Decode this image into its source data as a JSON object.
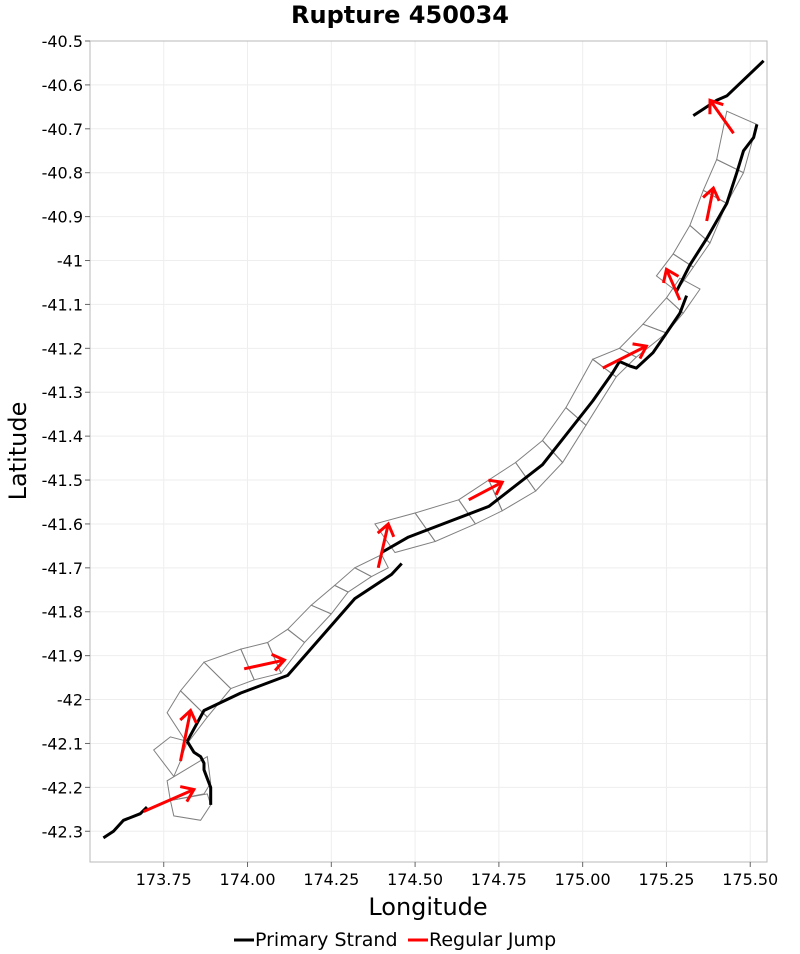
{
  "chart_data": {
    "type": "line",
    "title": "Rupture 450034",
    "xlabel": "Longitude",
    "ylabel": "Latitude",
    "xlim": [
      173.53,
      175.55
    ],
    "ylim": [
      -42.37,
      -40.5
    ],
    "xticks": [
      "173.75",
      "174.00",
      "174.25",
      "174.50",
      "174.75",
      "175.00",
      "175.25",
      "175.50"
    ],
    "yticks": [
      "-40.5",
      "-40.6",
      "-40.7",
      "-40.8",
      "-40.9",
      "-41",
      "-41.1",
      "-41.2",
      "-41.3",
      "-41.4",
      "-41.5",
      "-41.6",
      "-41.7",
      "-41.8",
      "-41.9",
      "-42",
      "-42.1",
      "-42.2",
      "-42.3"
    ],
    "grid": true,
    "legend_position": "bottom",
    "colors": {
      "primary_strand": "#000000",
      "regular_jump": "#ff0000",
      "subsection_outline": "#808080",
      "grid": "#eeeeee",
      "frame": "#b8b8b8"
    },
    "series": [
      {
        "name": "Primary Strand",
        "segments": [
          {
            "x": [
              173.57,
              173.6,
              173.63,
              173.68,
              173.7
            ],
            "y": [
              -42.315,
              -42.3,
              -42.275,
              -42.26,
              -42.245
            ]
          },
          {
            "x": [
              173.89,
              173.89,
              173.88,
              173.87,
              173.87,
              173.86,
              173.84,
              173.82
            ],
            "y": [
              -42.24,
              -42.2,
              -42.18,
              -42.16,
              -42.145,
              -42.13,
              -42.12,
              -42.095
            ]
          },
          {
            "x": [
              173.82,
              173.87,
              173.98,
              174.12,
              174.32,
              174.43,
              174.46
            ],
            "y": [
              -42.095,
              -42.025,
              -41.985,
              -41.945,
              -41.77,
              -41.715,
              -41.69
            ]
          },
          {
            "x": [
              174.4,
              174.48,
              174.72,
              174.88,
              175.03,
              175.09,
              175.11,
              175.14,
              175.16,
              175.21,
              175.25,
              175.29,
              175.31
            ],
            "y": [
              -41.665,
              -41.63,
              -41.56,
              -41.465,
              -41.32,
              -41.255,
              -41.23,
              -41.24,
              -41.245,
              -41.21,
              -41.165,
              -41.12,
              -41.08
            ]
          },
          {
            "x": [
              175.28,
              175.32,
              175.37,
              175.43,
              175.46,
              175.48,
              175.5,
              175.51,
              175.52
            ],
            "y": [
              -41.07,
              -41.01,
              -40.95,
              -40.87,
              -40.8,
              -40.75,
              -40.73,
              -40.72,
              -40.69
            ]
          },
          {
            "x": [
              175.33,
              175.36,
              175.4,
              175.43,
              175.54
            ],
            "y": [
              -40.67,
              -40.655,
              -40.635,
              -40.625,
              -40.545
            ]
          }
        ]
      },
      {
        "name": "Regular Jump",
        "arrows": [
          {
            "from": [
              173.69,
              -42.255
            ],
            "to": [
              173.84,
              -42.205
            ]
          },
          {
            "from": [
              173.8,
              -42.14
            ],
            "to": [
              173.83,
              -42.025
            ]
          },
          {
            "from": [
              173.99,
              -41.93
            ],
            "to": [
              174.11,
              -41.91
            ]
          },
          {
            "from": [
              174.39,
              -41.7
            ],
            "to": [
              174.42,
              -41.6
            ]
          },
          {
            "from": [
              174.66,
              -41.545
            ],
            "to": [
              174.76,
              -41.505
            ]
          },
          {
            "from": [
              175.06,
              -41.245
            ],
            "to": [
              175.19,
              -41.195
            ]
          },
          {
            "from": [
              175.29,
              -41.09
            ],
            "to": [
              175.25,
              -41.02
            ]
          },
          {
            "from": [
              175.37,
              -40.91
            ],
            "to": [
              175.39,
              -40.835
            ]
          },
          {
            "from": [
              175.45,
              -40.71
            ],
            "to": [
              175.38,
              -40.635
            ]
          }
        ]
      }
    ],
    "subsection_outlines": [
      [
        [
          173.77,
          -42.23
        ],
        [
          173.76,
          -42.185
        ],
        [
          173.88,
          -42.13
        ],
        [
          173.89,
          -42.19
        ],
        [
          173.87,
          -42.215
        ]
      ],
      [
        [
          173.77,
          -42.23
        ],
        [
          173.78,
          -42.265
        ],
        [
          173.86,
          -42.275
        ],
        [
          173.89,
          -42.24
        ],
        [
          173.88,
          -42.215
        ]
      ],
      [
        [
          173.72,
          -42.115
        ],
        [
          173.75,
          -42.145
        ],
        [
          173.78,
          -42.175
        ],
        [
          173.8,
          -42.14
        ],
        [
          173.82,
          -42.095
        ],
        [
          173.77,
          -42.085
        ]
      ],
      [
        [
          173.76,
          -42.03
        ],
        [
          173.82,
          -42.1
        ],
        [
          173.88,
          -42.04
        ],
        [
          173.8,
          -41.98
        ]
      ],
      [
        [
          173.8,
          -41.98
        ],
        [
          173.88,
          -42.04
        ],
        [
          173.95,
          -41.975
        ],
        [
          173.87,
          -41.915
        ]
      ],
      [
        [
          173.87,
          -41.915
        ],
        [
          173.95,
          -41.975
        ],
        [
          174.02,
          -41.955
        ],
        [
          173.98,
          -41.885
        ]
      ],
      [
        [
          173.98,
          -41.885
        ],
        [
          174.02,
          -41.955
        ],
        [
          174.1,
          -41.94
        ],
        [
          174.06,
          -41.87
        ]
      ],
      [
        [
          174.06,
          -41.87
        ],
        [
          174.1,
          -41.94
        ],
        [
          174.17,
          -41.87
        ],
        [
          174.12,
          -41.84
        ]
      ],
      [
        [
          174.12,
          -41.84
        ],
        [
          174.17,
          -41.87
        ],
        [
          174.25,
          -41.805
        ],
        [
          174.19,
          -41.785
        ]
      ],
      [
        [
          174.19,
          -41.785
        ],
        [
          174.25,
          -41.805
        ],
        [
          174.3,
          -41.755
        ],
        [
          174.26,
          -41.74
        ]
      ],
      [
        [
          174.26,
          -41.74
        ],
        [
          174.3,
          -41.755
        ],
        [
          174.37,
          -41.72
        ],
        [
          174.32,
          -41.7
        ]
      ],
      [
        [
          174.32,
          -41.7
        ],
        [
          174.37,
          -41.72
        ],
        [
          174.42,
          -41.7
        ],
        [
          174.4,
          -41.67
        ]
      ],
      [
        [
          174.38,
          -41.6
        ],
        [
          174.44,
          -41.665
        ],
        [
          174.56,
          -41.64
        ],
        [
          174.5,
          -41.575
        ]
      ],
      [
        [
          174.5,
          -41.575
        ],
        [
          174.56,
          -41.64
        ],
        [
          174.68,
          -41.6
        ],
        [
          174.63,
          -41.545
        ]
      ],
      [
        [
          174.63,
          -41.545
        ],
        [
          174.68,
          -41.6
        ],
        [
          174.76,
          -41.57
        ],
        [
          174.72,
          -41.5
        ]
      ],
      [
        [
          174.72,
          -41.5
        ],
        [
          174.76,
          -41.57
        ],
        [
          174.86,
          -41.525
        ],
        [
          174.8,
          -41.46
        ]
      ],
      [
        [
          174.8,
          -41.46
        ],
        [
          174.86,
          -41.525
        ],
        [
          174.94,
          -41.46
        ],
        [
          174.88,
          -41.41
        ]
      ],
      [
        [
          174.88,
          -41.41
        ],
        [
          174.94,
          -41.46
        ],
        [
          175.01,
          -41.375
        ],
        [
          174.95,
          -41.335
        ]
      ],
      [
        [
          174.95,
          -41.335
        ],
        [
          175.01,
          -41.375
        ],
        [
          175.1,
          -41.265
        ],
        [
          175.03,
          -41.225
        ]
      ],
      [
        [
          175.03,
          -41.225
        ],
        [
          175.1,
          -41.265
        ],
        [
          175.16,
          -41.22
        ],
        [
          175.11,
          -41.2
        ]
      ],
      [
        [
          175.11,
          -41.2
        ],
        [
          175.16,
          -41.22
        ],
        [
          175.25,
          -41.165
        ],
        [
          175.18,
          -41.145
        ]
      ],
      [
        [
          175.18,
          -41.145
        ],
        [
          175.25,
          -41.165
        ],
        [
          175.3,
          -41.12
        ],
        [
          175.25,
          -41.085
        ]
      ],
      [
        [
          175.25,
          -41.085
        ],
        [
          175.3,
          -41.12
        ],
        [
          175.35,
          -41.065
        ],
        [
          175.29,
          -41.04
        ]
      ],
      [
        [
          175.22,
          -41.035
        ],
        [
          175.28,
          -41.07
        ],
        [
          175.33,
          -41.015
        ],
        [
          175.27,
          -40.985
        ]
      ],
      [
        [
          175.27,
          -40.985
        ],
        [
          175.33,
          -41.015
        ],
        [
          175.38,
          -40.96
        ],
        [
          175.32,
          -40.92
        ]
      ],
      [
        [
          175.32,
          -40.92
        ],
        [
          175.38,
          -40.96
        ],
        [
          175.43,
          -40.87
        ],
        [
          175.36,
          -40.84
        ]
      ],
      [
        [
          175.36,
          -40.84
        ],
        [
          175.43,
          -40.87
        ],
        [
          175.48,
          -40.8
        ],
        [
          175.4,
          -40.77
        ]
      ],
      [
        [
          175.4,
          -40.77
        ],
        [
          175.48,
          -40.8
        ],
        [
          175.52,
          -40.69
        ],
        [
          175.43,
          -40.66
        ]
      ]
    ],
    "legend": [
      "Primary Strand",
      "Regular Jump"
    ]
  }
}
